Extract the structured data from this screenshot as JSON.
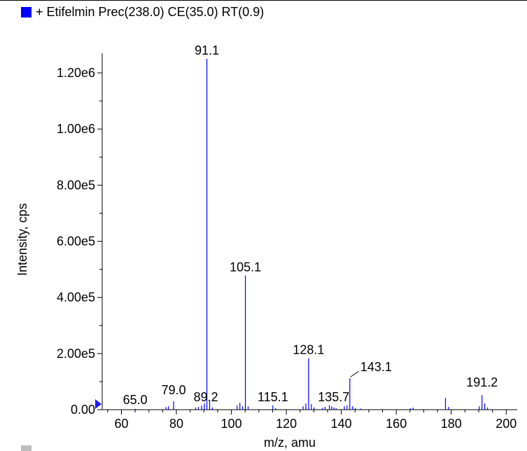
{
  "legend": {
    "label": "+ Etifelmin Prec(238.0) CE(35.0) RT(0.9)",
    "color": "#0000ff"
  },
  "chart_data": {
    "type": "bar",
    "title": "+ Etifelmin Prec(238.0) CE(35.0) RT(0.9)",
    "xlabel": "m/z, amu",
    "ylabel": "Intensity, cps",
    "xlim": [
      53,
      204
    ],
    "ylim": [
      0,
      1270000
    ],
    "x_ticks": [
      60,
      80,
      100,
      120,
      140,
      160,
      180,
      200
    ],
    "y_ticks": [
      {
        "value": 0,
        "label": "0.00"
      },
      {
        "value": 200000,
        "label": "2.00e5"
      },
      {
        "value": 400000,
        "label": "4.00e5"
      },
      {
        "value": 600000,
        "label": "6.00e5"
      },
      {
        "value": 800000,
        "label": "8.00e5"
      },
      {
        "value": 1000000,
        "label": "1.00e6"
      },
      {
        "value": 1200000,
        "label": "1.20e6"
      }
    ],
    "series_color": "#0000ff",
    "peaks": [
      {
        "mz": 65.0,
        "intensity": 3000,
        "label": "65.0"
      },
      {
        "mz": 76.2,
        "intensity": 9000,
        "label": ""
      },
      {
        "mz": 77.1,
        "intensity": 12000,
        "label": ""
      },
      {
        "mz": 79.0,
        "intensity": 30000,
        "label": "79.0"
      },
      {
        "mz": 87.0,
        "intensity": 8000,
        "label": ""
      },
      {
        "mz": 88.0,
        "intensity": 10000,
        "label": ""
      },
      {
        "mz": 89.2,
        "intensity": 15000,
        "label": "89.2"
      },
      {
        "mz": 90.2,
        "intensity": 22000,
        "label": ""
      },
      {
        "mz": 91.1,
        "intensity": 1250000,
        "label": "91.1"
      },
      {
        "mz": 92.1,
        "intensity": 30000,
        "label": ""
      },
      {
        "mz": 93.1,
        "intensity": 8000,
        "label": ""
      },
      {
        "mz": 102.1,
        "intensity": 15000,
        "label": ""
      },
      {
        "mz": 103.1,
        "intensity": 25000,
        "label": ""
      },
      {
        "mz": 104.1,
        "intensity": 12000,
        "label": ""
      },
      {
        "mz": 105.1,
        "intensity": 478000,
        "label": "105.1"
      },
      {
        "mz": 106.1,
        "intensity": 12000,
        "label": ""
      },
      {
        "mz": 115.1,
        "intensity": 15000,
        "label": "115.1"
      },
      {
        "mz": 116.1,
        "intensity": 5000,
        "label": ""
      },
      {
        "mz": 126.1,
        "intensity": 12000,
        "label": ""
      },
      {
        "mz": 127.1,
        "intensity": 22000,
        "label": ""
      },
      {
        "mz": 128.1,
        "intensity": 183000,
        "label": "128.1"
      },
      {
        "mz": 129.1,
        "intensity": 20000,
        "label": ""
      },
      {
        "mz": 130.1,
        "intensity": 8000,
        "label": ""
      },
      {
        "mz": 133.1,
        "intensity": 6000,
        "label": ""
      },
      {
        "mz": 134.1,
        "intensity": 10000,
        "label": ""
      },
      {
        "mz": 135.7,
        "intensity": 16000,
        "label": "135.7"
      },
      {
        "mz": 136.5,
        "intensity": 12000,
        "label": ""
      },
      {
        "mz": 137.3,
        "intensity": 8000,
        "label": ""
      },
      {
        "mz": 138.1,
        "intensity": 5000,
        "label": ""
      },
      {
        "mz": 141.1,
        "intensity": 12000,
        "label": ""
      },
      {
        "mz": 142.1,
        "intensity": 15000,
        "label": ""
      },
      {
        "mz": 143.1,
        "intensity": 112000,
        "label": "143.1"
      },
      {
        "mz": 144.1,
        "intensity": 12000,
        "label": ""
      },
      {
        "mz": 145.1,
        "intensity": 6000,
        "label": ""
      },
      {
        "mz": 147.1,
        "intensity": 4000,
        "label": ""
      },
      {
        "mz": 165.1,
        "intensity": 5000,
        "label": ""
      },
      {
        "mz": 166.1,
        "intensity": 7000,
        "label": ""
      },
      {
        "mz": 177.9,
        "intensity": 42000,
        "label": ""
      },
      {
        "mz": 179.0,
        "intensity": 10000,
        "label": ""
      },
      {
        "mz": 190.2,
        "intensity": 12000,
        "label": ""
      },
      {
        "mz": 191.2,
        "intensity": 52000,
        "label": "191.2"
      },
      {
        "mz": 192.2,
        "intensity": 22000,
        "label": ""
      },
      {
        "mz": 193.2,
        "intensity": 8000,
        "label": ""
      }
    ]
  }
}
